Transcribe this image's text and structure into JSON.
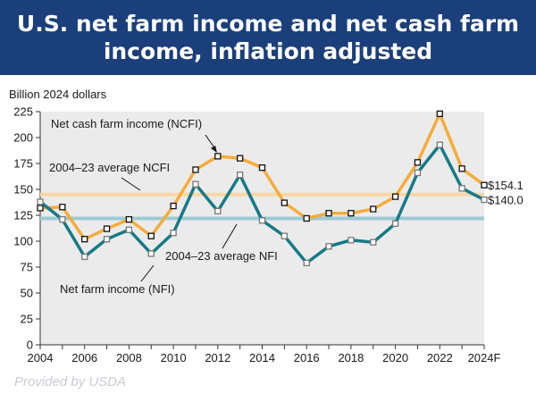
{
  "header": {
    "title_line1": "U.S. net farm income and net cash farm",
    "title_line2": "income, inflation adjusted"
  },
  "footer": {
    "credit": "Provided by USDA"
  },
  "colors": {
    "title_bar": "#1a3f7a",
    "ncfi": "#f5ac3c",
    "nfi": "#157a86",
    "ncfi_average": "#f9d6a6",
    "nfi_average": "#9ccbd3",
    "plot_background": "#ebebeb"
  },
  "chart_data": {
    "type": "line",
    "ylabel": "Billion 2024 dollars",
    "ylim": [
      0,
      225
    ],
    "yticks": [
      0,
      25,
      50,
      75,
      100,
      125,
      150,
      175,
      200,
      225
    ],
    "xlim": [
      2004,
      2024
    ],
    "xtick_values": [
      2004,
      2006,
      2008,
      2010,
      2012,
      2014,
      2016,
      2018,
      2020,
      2022,
      2024
    ],
    "xtick_labels": [
      "2004",
      "2006",
      "2008",
      "2010",
      "2012",
      "2014",
      "2016",
      "2018",
      "2020",
      "2022",
      "2024F"
    ],
    "x": [
      2004,
      2005,
      2006,
      2007,
      2008,
      2009,
      2010,
      2011,
      2012,
      2013,
      2014,
      2015,
      2016,
      2017,
      2018,
      2019,
      2020,
      2021,
      2022,
      2023,
      2024
    ],
    "series": [
      {
        "name": "Net cash farm income (NCFI)",
        "key": "ncfi",
        "values": [
          132,
          133,
          102,
          112,
          121,
          105,
          134,
          169,
          182,
          180,
          171,
          137,
          122,
          127,
          127,
          131,
          143,
          176,
          223,
          170,
          154.1
        ]
      },
      {
        "name": "Net farm income (NFI)",
        "key": "nfi",
        "values": [
          138,
          121,
          85,
          102,
          111,
          88,
          108,
          155,
          129,
          164,
          120,
          105,
          79,
          95,
          101,
          99,
          117,
          166,
          193,
          151,
          140.0
        ]
      }
    ],
    "reference_lines": [
      {
        "name": "2004–23 average NCFI",
        "key": "ncfi_avg",
        "value": 145
      },
      {
        "name": "2004–23 average NFI",
        "key": "nfi_avg",
        "value": 122
      }
    ],
    "end_labels": [
      "$154.1",
      "$140.0"
    ],
    "grid": false
  }
}
